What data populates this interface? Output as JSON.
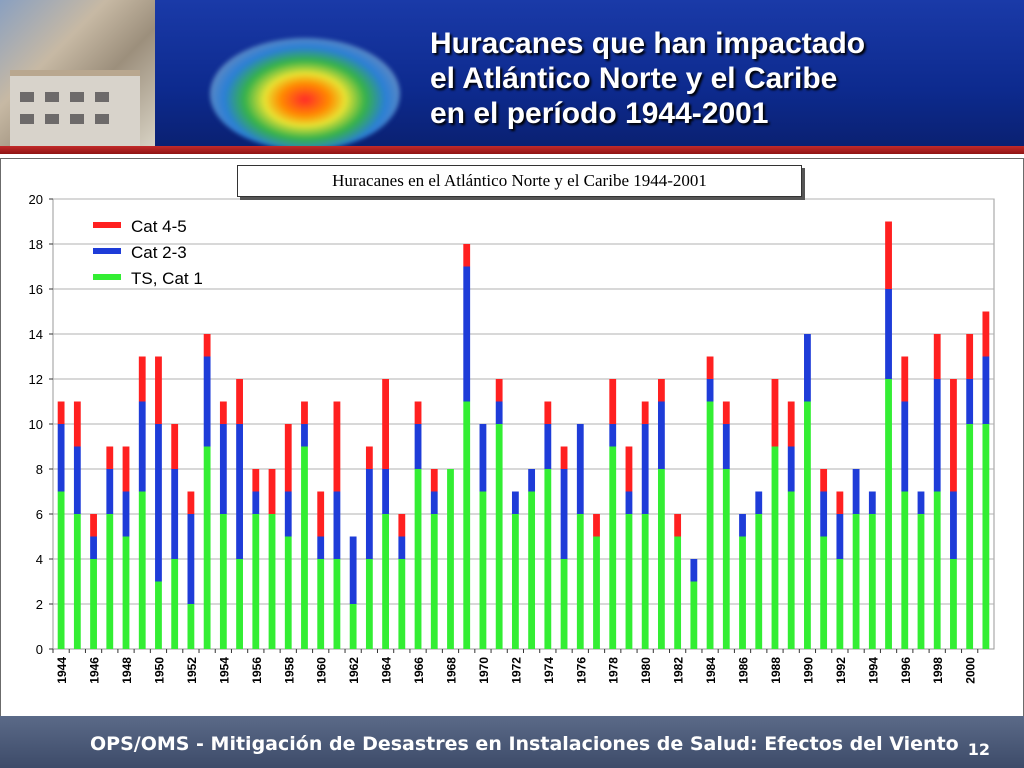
{
  "slide": {
    "title_lines": [
      "Huracanes  que han impactado",
      "el Atlántico Norte y el Caribe",
      "en el período 1944-2001"
    ],
    "footer": "OPS/OMS - Mitigación de Desastres en Instalaciones de Salud: Efectos del Viento",
    "page_number": "12"
  },
  "colors": {
    "header_bg": "#0d2a8e",
    "separator": "#c22a2a",
    "footer_bg": "#4a5878",
    "cat45": "#ff2020",
    "cat23": "#1e3cd8",
    "ts_cat1": "#33ee33"
  },
  "chart_data": {
    "type": "bar",
    "stacked": true,
    "title": "Huracanes en el Atlántico Norte y el Caribe 1944-2001",
    "categories": [
      "1944",
      "1945",
      "1946",
      "1947",
      "1948",
      "1949",
      "1950",
      "1951",
      "1952",
      "1953",
      "1954",
      "1955",
      "1956",
      "1957",
      "1958",
      "1959",
      "1960",
      "1961",
      "1962",
      "1963",
      "1964",
      "1965",
      "1966",
      "1967",
      "1968",
      "1969",
      "1970",
      "1971",
      "1972",
      "1973",
      "1974",
      "1975",
      "1976",
      "1977",
      "1978",
      "1979",
      "1980",
      "1981",
      "1982",
      "1983",
      "1984",
      "1985",
      "1986",
      "1987",
      "1988",
      "1989",
      "1990",
      "1991",
      "1992",
      "1993",
      "1994",
      "1995",
      "1996",
      "1997",
      "1998",
      "1999",
      "2000",
      "2001"
    ],
    "tick_labels": [
      "1944",
      "1946",
      "1948",
      "1950",
      "1952",
      "1954",
      "1956",
      "1958",
      "1960",
      "1962",
      "1964",
      "1966",
      "1968",
      "1970",
      "1972",
      "1974",
      "1976",
      "1978",
      "1980",
      "1982",
      "1984",
      "1986",
      "1988",
      "1990",
      "1992",
      "1994",
      "1996",
      "1998",
      "2000"
    ],
    "series": [
      {
        "name": "TS, Cat 1",
        "color": "#33ee33",
        "values": [
          7,
          6,
          4,
          6,
          5,
          7,
          3,
          4,
          2,
          9,
          6,
          4,
          6,
          6,
          5,
          9,
          4,
          4,
          2,
          4,
          6,
          4,
          8,
          6,
          8,
          11,
          7,
          10,
          6,
          7,
          8,
          4,
          6,
          5,
          9,
          6,
          6,
          8,
          5,
          3,
          11,
          8,
          5,
          6,
          9,
          7,
          11,
          5,
          4,
          6,
          6,
          12,
          7,
          6,
          7,
          4,
          10,
          10
        ]
      },
      {
        "name": "Cat 2-3",
        "color": "#1e3cd8",
        "values": [
          3,
          3,
          1,
          2,
          2,
          4,
          7,
          4,
          4,
          4,
          4,
          6,
          1,
          0,
          2,
          1,
          1,
          3,
          3,
          4,
          2,
          1,
          2,
          1,
          0,
          6,
          3,
          1,
          1,
          1,
          2,
          4,
          4,
          0,
          1,
          1,
          4,
          3,
          0,
          1,
          1,
          2,
          1,
          1,
          0,
          2,
          3,
          2,
          2,
          2,
          1,
          4,
          4,
          1,
          5,
          3,
          2,
          3
        ]
      },
      {
        "name": "Cat 4-5",
        "color": "#ff2020",
        "values": [
          1,
          2,
          1,
          1,
          2,
          2,
          3,
          2,
          1,
          1,
          1,
          2,
          1,
          2,
          3,
          1,
          2,
          4,
          0,
          1,
          4,
          1,
          1,
          1,
          0,
          1,
          0,
          1,
          0,
          0,
          1,
          1,
          0,
          1,
          2,
          2,
          1,
          1,
          1,
          0,
          1,
          1,
          0,
          0,
          3,
          2,
          0,
          1,
          1,
          0,
          0,
          3,
          2,
          0,
          2,
          5,
          2,
          2
        ]
      }
    ],
    "ylim": [
      0,
      20
    ],
    "yticks": [
      0,
      2,
      4,
      6,
      8,
      10,
      12,
      14,
      16,
      18,
      20
    ],
    "grid": true,
    "legend_position": "top-left",
    "legend_order": [
      "Cat 4-5",
      "Cat 2-3",
      "TS, Cat 1"
    ]
  }
}
